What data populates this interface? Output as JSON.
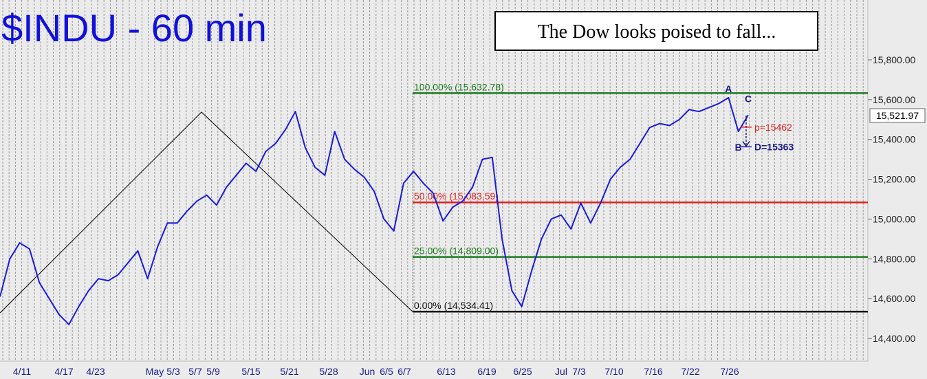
{
  "chart_data": {
    "type": "line",
    "title": "$INDU - 60 min",
    "annotation": "The Dow looks poised to fall...",
    "last_value_label": "15,521.97",
    "y_ticks": [
      {
        "value": 14400,
        "label": "14,400.00"
      },
      {
        "value": 14600,
        "label": "14,600.00"
      },
      {
        "value": 14800,
        "label": "14,800.00"
      },
      {
        "value": 15000,
        "label": "15,000.00"
      },
      {
        "value": 15200,
        "label": "15,200.00"
      },
      {
        "value": 15400,
        "label": "15,400.00"
      },
      {
        "value": 15600,
        "label": "15,600.00"
      },
      {
        "value": 15800,
        "label": "15,800.00"
      }
    ],
    "x_labels": [
      "4/11",
      "4/17",
      "4/23",
      "May",
      "5/3",
      "5/7",
      "5/9",
      "5/15",
      "5/21",
      "5/28",
      "Jun",
      "6/5",
      "6/7",
      "6/13",
      "6/19",
      "6/25",
      "Jul",
      "7/3",
      "7/10",
      "7/16",
      "7/22",
      "7/26"
    ],
    "fib_levels": [
      {
        "label": "100.00% (15,632.78)",
        "value": 15632.78,
        "color": "#1c7a1c"
      },
      {
        "label": "50.00% (15,083.59)",
        "value": 15083.59,
        "color": "#e02020"
      },
      {
        "label": "25.00% (14,809.00)",
        "value": 14809.0,
        "color": "#1c7a1c"
      },
      {
        "label": "0.00% (14,534.41)",
        "value": 14534.41,
        "color": "#111111"
      }
    ],
    "points": [
      {
        "label": "A",
        "x": "7/24",
        "y": 15610
      },
      {
        "label": "B",
        "x": "7/25",
        "y": 15440
      },
      {
        "label": "C",
        "x": "7/26",
        "y": 15560
      }
    ],
    "targets": [
      {
        "label": "p=15462",
        "value": 15462,
        "color": "#e02020"
      },
      {
        "label": "D=15363",
        "value": 15363,
        "color": "#1a1a8c"
      }
    ],
    "series": [
      {
        "x": [
          "4/8",
          "4/10",
          "4/11",
          "4/12",
          "4/15",
          "4/16",
          "4/17",
          "4/18",
          "4/19",
          "4/22",
          "4/23",
          "4/24",
          "4/25",
          "4/26",
          "4/29",
          "4/30",
          "5/1",
          "5/2",
          "5/3",
          "5/6",
          "5/7",
          "5/8",
          "5/9",
          "5/10",
          "5/13",
          "5/14",
          "5/15",
          "5/16",
          "5/17",
          "5/20",
          "5/21",
          "5/22",
          "5/23",
          "5/24",
          "5/28",
          "5/29",
          "5/30",
          "5/31",
          "6/3",
          "6/4",
          "6/5",
          "6/6",
          "6/7",
          "6/10",
          "6/11",
          "6/12",
          "6/13",
          "6/14",
          "6/17",
          "6/18",
          "6/19",
          "6/20",
          "6/21",
          "6/24",
          "6/25",
          "6/26",
          "6/27",
          "6/28",
          "7/1",
          "7/2",
          "7/3",
          "7/5",
          "7/8",
          "7/9",
          "7/10",
          "7/11",
          "7/12",
          "7/15",
          "7/16",
          "7/17",
          "7/18",
          "7/19",
          "7/22",
          "7/23",
          "7/24",
          "7/25",
          "7/26"
        ],
        "values": [
          14610,
          14800,
          14880,
          14850,
          14680,
          14600,
          14520,
          14470,
          14560,
          14640,
          14700,
          14690,
          14720,
          14780,
          14840,
          14700,
          14860,
          14980,
          14980,
          15040,
          15090,
          15120,
          15070,
          15160,
          15220,
          15280,
          15240,
          15340,
          15380,
          15450,
          15540,
          15360,
          15260,
          15220,
          15440,
          15300,
          15250,
          15210,
          15140,
          15000,
          14940,
          15180,
          15240,
          15180,
          15130,
          14990,
          15060,
          15090,
          15160,
          15300,
          15310,
          14900,
          14640,
          14560,
          14740,
          14900,
          15000,
          15020,
          14950,
          15080,
          14980,
          15080,
          15200,
          15260,
          15300,
          15380,
          15460,
          15480,
          15470,
          15500,
          15550,
          15540,
          15560,
          15580,
          15610,
          15440,
          15521.97
        ]
      }
    ]
  }
}
